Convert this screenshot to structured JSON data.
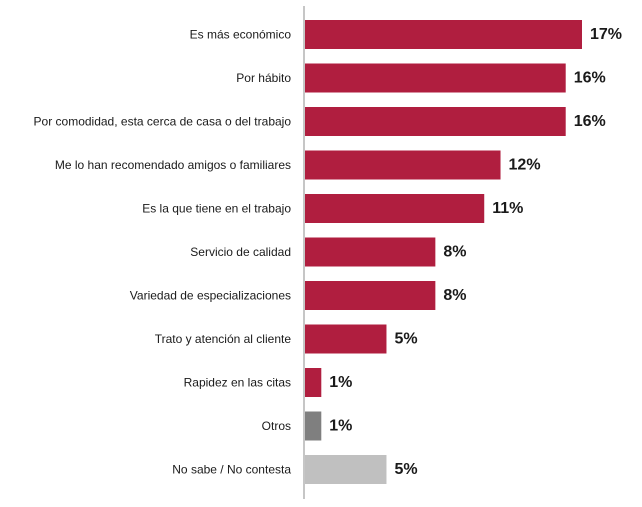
{
  "chart_data": {
    "type": "bar",
    "orientation": "horizontal",
    "categories": [
      "Es más económico",
      "Por hábito",
      "Por comodidad, esta cerca de casa o del trabajo",
      "Me lo han recomendado amigos o familiares",
      "Es la que tiene en el trabajo",
      "Servicio de calidad",
      "Variedad de especializaciones",
      "Trato y atención al cliente",
      "Rapidez en las citas",
      "Otros",
      "No sabe / No contesta"
    ],
    "values": [
      17,
      16,
      16,
      12,
      11,
      8,
      8,
      5,
      1,
      1,
      5
    ],
    "value_labels": [
      "17%",
      "16%",
      "16%",
      "12%",
      "11%",
      "8%",
      "8%",
      "5%",
      "1%",
      "1%",
      "5%"
    ],
    "bar_colors": [
      "#b01e3f",
      "#b01e3f",
      "#b01e3f",
      "#b01e3f",
      "#b01e3f",
      "#b01e3f",
      "#b01e3f",
      "#b01e3f",
      "#b01e3f",
      "#7f7f7f",
      "#c0c0c0"
    ],
    "axis_color": "#8c8c8c",
    "title": "",
    "xlabel": "",
    "ylabel": "",
    "xlim": [
      0,
      17
    ],
    "grid": false
  }
}
